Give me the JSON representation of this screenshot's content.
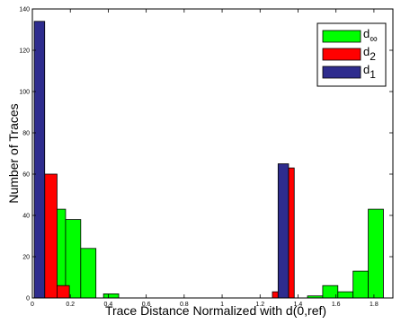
{
  "chart_data": {
    "type": "bar",
    "title": "",
    "xlabel": "Trace Distance Normalized with d(0,ref)",
    "ylabel": "Number of Traces",
    "xlim": [
      0,
      1.9
    ],
    "ylim": [
      0,
      140
    ],
    "x_ticks": [
      0,
      0.2,
      0.4,
      0.6,
      0.8,
      1,
      1.2,
      1.4,
      1.6,
      1.8
    ],
    "x_tick_labels": [
      "0",
      "0.2",
      "0.4",
      "0.6",
      "0.8",
      "1",
      "1.2",
      "1.4",
      "1.6",
      "1.8"
    ],
    "y_ticks": [
      0,
      20,
      40,
      60,
      80,
      100,
      120,
      140
    ],
    "y_tick_labels": [
      "0",
      "20",
      "40",
      "60",
      "80",
      "100",
      "120",
      "140"
    ],
    "grid": false,
    "legend_position": "top-right",
    "series": [
      {
        "name": "d∞",
        "legend_main": "d",
        "legend_sub": "∞",
        "color": "#00ff00",
        "bars": [
          {
            "x0": 0.125,
            "x1": 0.175,
            "y": 43
          },
          {
            "x0": 0.175,
            "x1": 0.255,
            "y": 38
          },
          {
            "x0": 0.255,
            "x1": 0.335,
            "y": 24
          },
          {
            "x0": 0.375,
            "x1": 0.455,
            "y": 2
          },
          {
            "x0": 0.455,
            "x1": 1.23,
            "y": 0
          },
          {
            "x0": 1.45,
            "x1": 1.53,
            "y": 1
          },
          {
            "x0": 1.53,
            "x1": 1.61,
            "y": 6
          },
          {
            "x0": 1.61,
            "x1": 1.69,
            "y": 3
          },
          {
            "x0": 1.69,
            "x1": 1.77,
            "y": 13
          },
          {
            "x0": 1.77,
            "x1": 1.85,
            "y": 43
          }
        ]
      },
      {
        "name": "d2",
        "legend_main": "d",
        "legend_sub": "2",
        "color": "#ff0000",
        "bars": [
          {
            "x0": 0.065,
            "x1": 0.13,
            "y": 60
          },
          {
            "x0": 0.13,
            "x1": 0.195,
            "y": 6
          },
          {
            "x0": 1.265,
            "x1": 1.295,
            "y": 3
          },
          {
            "x0": 1.35,
            "x1": 1.38,
            "y": 63
          }
        ]
      },
      {
        "name": "d1",
        "legend_main": "d",
        "legend_sub": "1",
        "color": "#2e2c8e",
        "bars": [
          {
            "x0": 0.01,
            "x1": 0.065,
            "y": 134
          },
          {
            "x0": 1.295,
            "x1": 1.35,
            "y": 65
          }
        ]
      }
    ]
  }
}
